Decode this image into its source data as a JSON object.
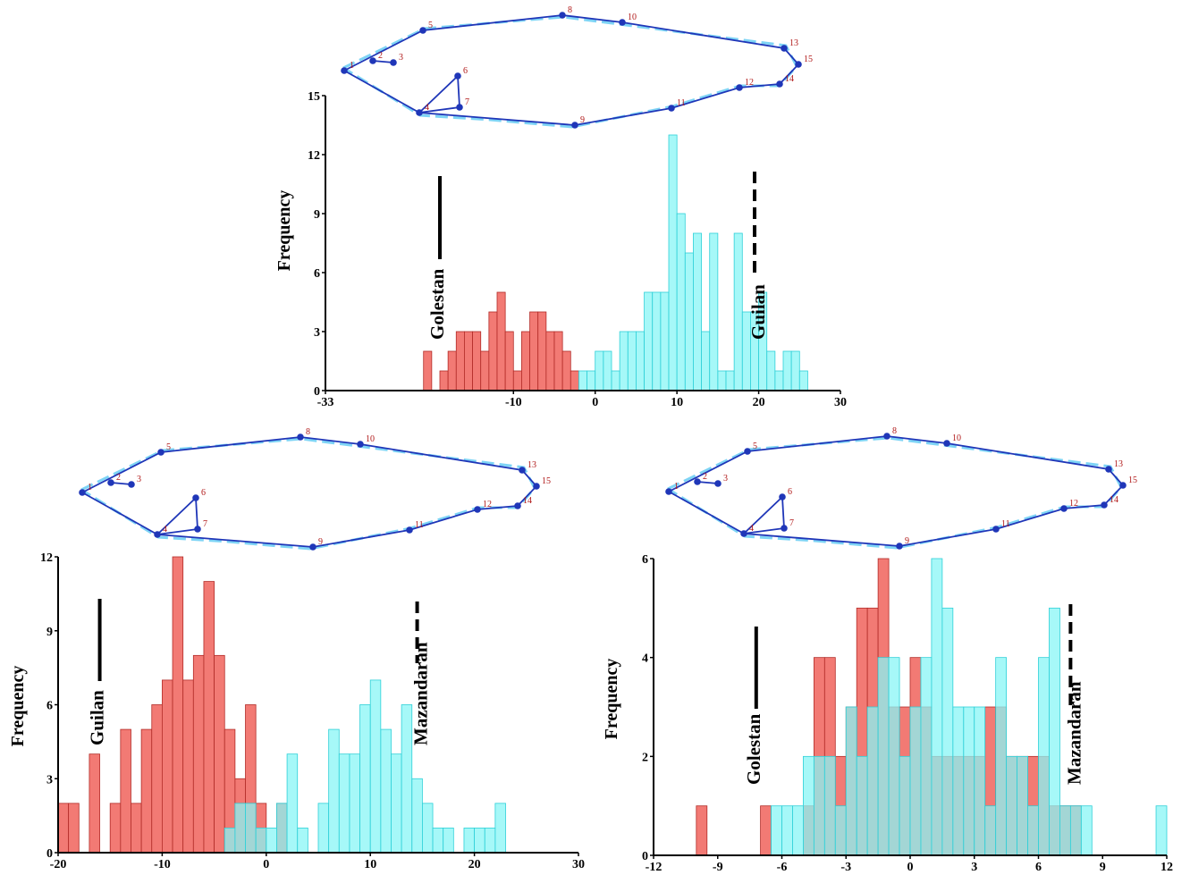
{
  "colors": {
    "red_fill": "#f27a74",
    "red_edge": "#b22c28",
    "cyan_fill": "#88f6f6",
    "cyan_edge": "#2fd0d8",
    "overlap_fill": "#6bb3b0",
    "outline": "#1f36b8",
    "consensus": "#5ec9f2",
    "landmark_label": "#b01818"
  },
  "landmarks": [
    "1",
    "2",
    "3",
    "4",
    "5",
    "6",
    "7",
    "8",
    "9",
    "10",
    "11",
    "12",
    "13",
    "14",
    "15"
  ],
  "chart_data": [
    {
      "type": "bar",
      "panel": "top",
      "ylabel": "Frequency",
      "xlim": [
        -33,
        30
      ],
      "ylim": [
        0,
        15
      ],
      "xticks": [
        "-33",
        "-10",
        "0",
        "10",
        "20",
        "30"
      ],
      "xtick_values": [
        -33,
        -10,
        0,
        10,
        20,
        30
      ],
      "yticks": [
        "0",
        "3",
        "6",
        "9",
        "12",
        "15"
      ],
      "ytick_values": [
        0,
        3,
        6,
        9,
        12,
        15
      ],
      "bin_width": 1,
      "groups": [
        {
          "name": "Golestan",
          "color_key": "red",
          "marker_x": -19,
          "marker_style": "solid",
          "bins_start": -21,
          "values": [
            2,
            0,
            1,
            2,
            3,
            3,
            3,
            2,
            4,
            5,
            3,
            1,
            3,
            4,
            4,
            3,
            3,
            2,
            1
          ]
        },
        {
          "name": "Guilan",
          "color_key": "cyan",
          "marker_x": 19.5,
          "marker_style": "dashed",
          "bins_start": -2,
          "values": [
            1,
            1,
            2,
            2,
            1,
            3,
            3,
            3,
            5,
            5,
            5,
            13,
            9,
            7,
            8,
            3,
            8,
            1,
            1,
            8,
            4,
            4,
            5,
            2,
            1,
            2,
            2,
            1
          ]
        }
      ]
    },
    {
      "type": "bar",
      "panel": "bottom-left",
      "ylabel": "Frequency",
      "xlim": [
        -20,
        30
      ],
      "ylim": [
        0,
        12
      ],
      "xticks": [
        "-20",
        "-10",
        "0",
        "10",
        "20",
        "30"
      ],
      "xtick_values": [
        -20,
        -10,
        0,
        10,
        20,
        30
      ],
      "yticks": [
        "0",
        "3",
        "6",
        "9",
        "12"
      ],
      "ytick_values": [
        0,
        3,
        6,
        9,
        12
      ],
      "bin_width": 1,
      "groups": [
        {
          "name": "Guilan",
          "color_key": "red",
          "marker_x": -16,
          "marker_style": "solid",
          "bins_start": -20,
          "values": [
            2,
            2,
            0,
            4,
            0,
            2,
            5,
            2,
            5,
            6,
            7,
            12,
            7,
            8,
            11,
            8,
            5,
            3,
            6,
            2,
            0,
            2
          ]
        },
        {
          "name": "Mazandaran",
          "color_key": "cyan",
          "marker_x": 14.5,
          "marker_style": "dashed",
          "bins_start": -4,
          "values": [
            1,
            2,
            2,
            1,
            1,
            2,
            4,
            1,
            0,
            2,
            5,
            4,
            4,
            6,
            7,
            5,
            4,
            6,
            3,
            2,
            1,
            1,
            0,
            1,
            1,
            1,
            2
          ]
        }
      ]
    },
    {
      "type": "bar",
      "panel": "bottom-right",
      "ylabel": "Frequency",
      "xlim": [
        -12,
        12
      ],
      "ylim": [
        0,
        6
      ],
      "xticks": [
        "-12",
        "-9",
        "-6",
        "-3",
        "0",
        "3",
        "6",
        "9",
        "12"
      ],
      "xtick_values": [
        -12,
        -9,
        -6,
        -3,
        0,
        3,
        6,
        9,
        12
      ],
      "yticks": [
        "0",
        "2",
        "4",
        "6"
      ],
      "ytick_values": [
        0,
        2,
        4,
        6
      ],
      "bin_width": 0.5,
      "groups": [
        {
          "name": "Golestan",
          "color_key": "red",
          "marker_x": -7.2,
          "marker_style": "solid",
          "bins_start": -10,
          "values": [
            1,
            0,
            0,
            0,
            0,
            0,
            1,
            0,
            0,
            0,
            1,
            4,
            4,
            2,
            3,
            5,
            5,
            6,
            3,
            3,
            4,
            3,
            2,
            2,
            2,
            2,
            2,
            3,
            3,
            2,
            2,
            2,
            2,
            1,
            1,
            1
          ]
        },
        {
          "name": "Mazandaran",
          "color_key": "cyan",
          "marker_x": 7.5,
          "marker_style": "dashed",
          "bins_start": -6.5,
          "values": [
            1,
            1,
            1,
            2,
            2,
            2,
            1,
            3,
            2,
            3,
            4,
            4,
            2,
            3,
            4,
            6,
            5,
            3,
            3,
            3,
            1,
            4,
            2,
            2,
            1,
            4,
            5,
            1,
            1,
            1,
            0,
            0,
            0,
            0,
            0,
            0,
            1
          ]
        }
      ]
    }
  ]
}
